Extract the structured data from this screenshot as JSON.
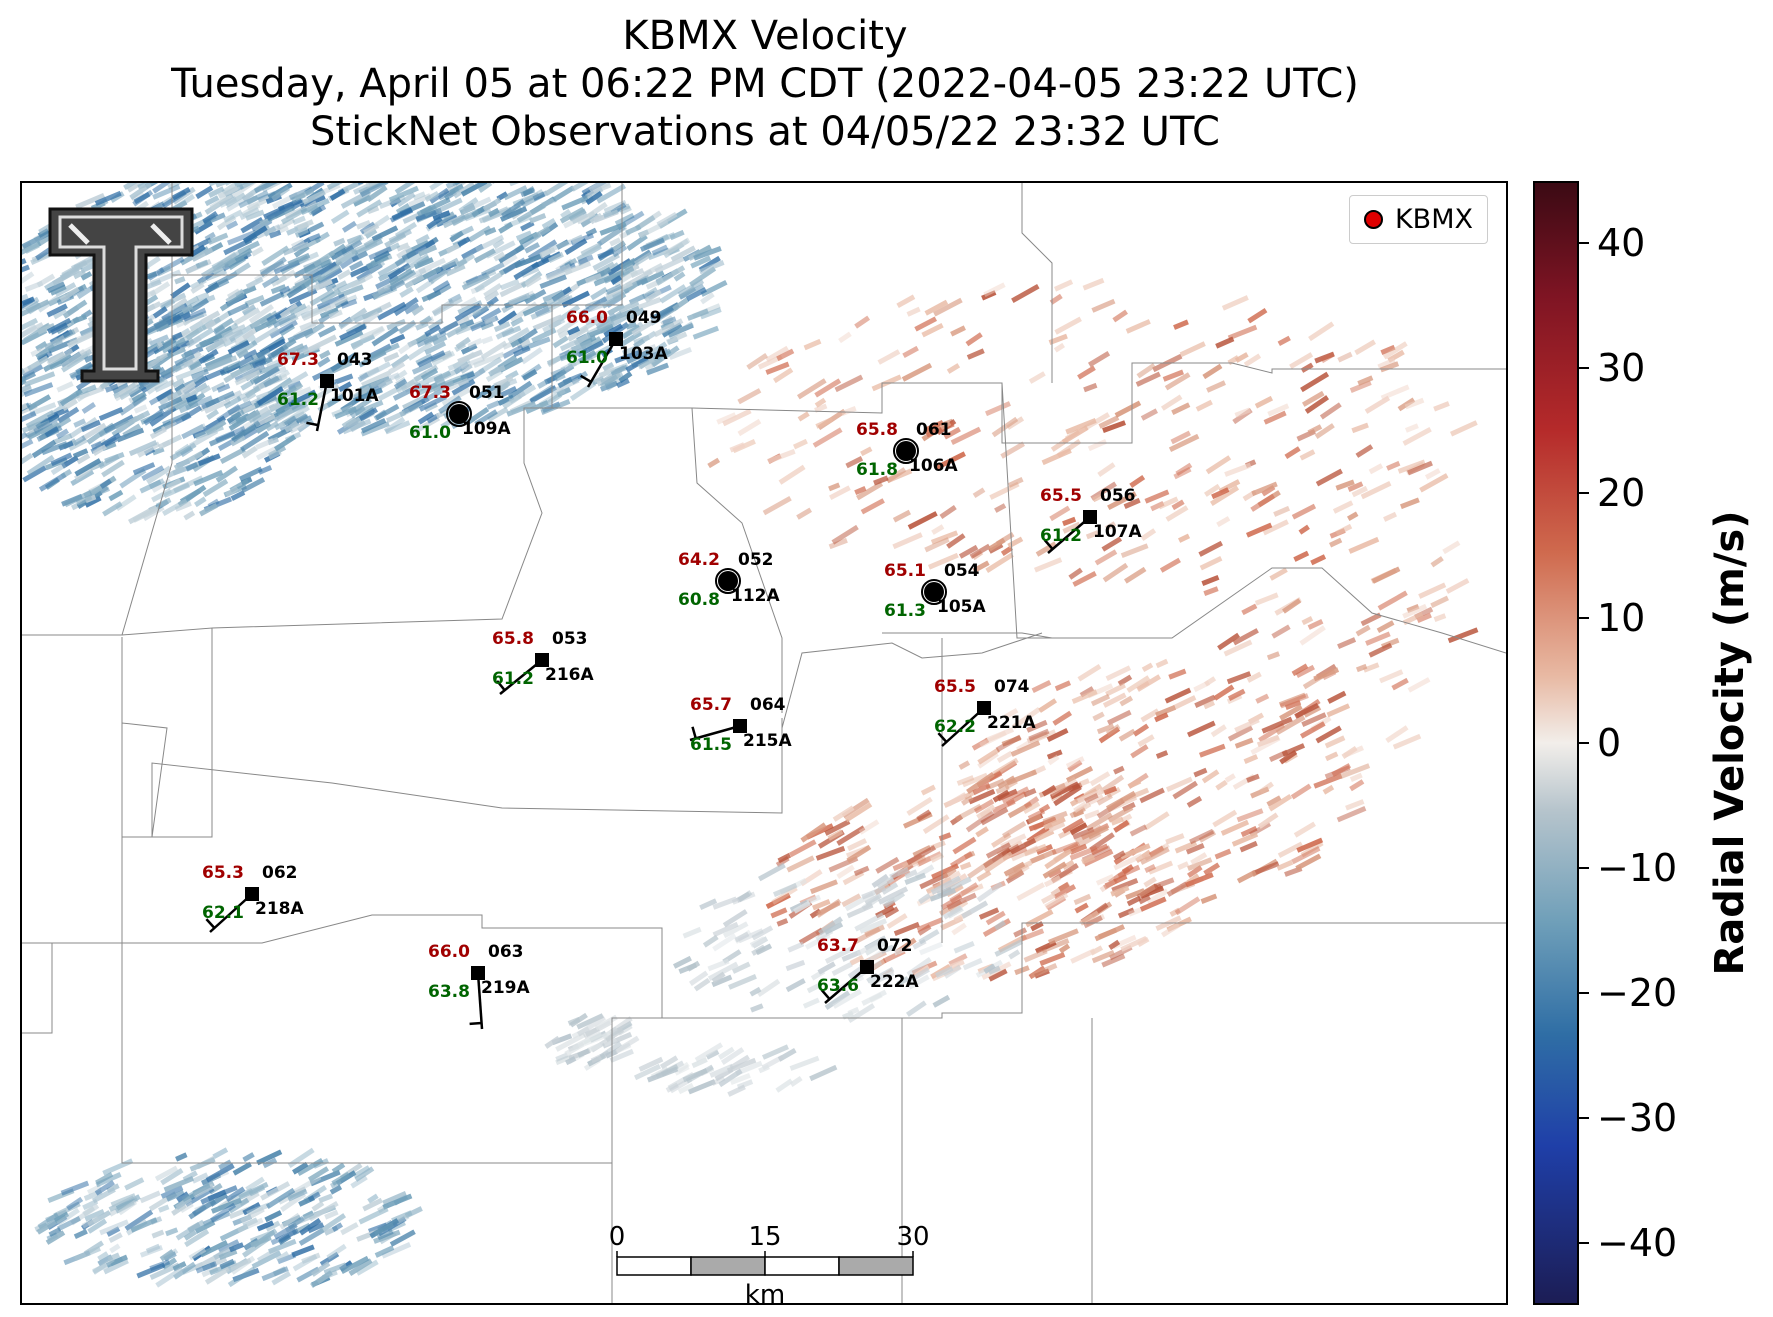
{
  "title": {
    "line1": "KBMX Velocity",
    "line2": "Tuesday, April 05 at 06:22 PM CDT (2022-04-05 23:22 UTC)",
    "line3": "StickNet Observations at 04/05/22 23:32 UTC"
  },
  "legend": {
    "label": "KBMX",
    "marker_color": "#e00000"
  },
  "colorbar": {
    "label": "Radial Velocity (m/s)",
    "ticks": [
      "40",
      "30",
      "20",
      "10",
      "0",
      "−10",
      "−20",
      "−30",
      "−40"
    ],
    "range": [
      -45,
      45
    ]
  },
  "scalebar": {
    "ticks": [
      "0",
      "15",
      "30"
    ],
    "unit": "km"
  },
  "logo": {
    "icon": "texas-tech-double-t-logo"
  },
  "colors": {
    "temperature": "#a00000",
    "dewpoint": "#006400",
    "station_id": "#000000"
  },
  "stations": [
    {
      "id": "043",
      "probe": "101A",
      "temp": "67.3",
      "dew": "61.2",
      "marker": "square-barb"
    },
    {
      "id": "051",
      "probe": "109A",
      "temp": "67.3",
      "dew": "61.0",
      "marker": "calm-circle"
    },
    {
      "id": "049",
      "probe": "103A",
      "temp": "66.0",
      "dew": "61.0",
      "marker": "square-barb"
    },
    {
      "id": "061",
      "probe": "106A",
      "temp": "65.8",
      "dew": "61.8",
      "marker": "calm-circle"
    },
    {
      "id": "056",
      "probe": "107A",
      "temp": "65.5",
      "dew": "61.2",
      "marker": "square-barb"
    },
    {
      "id": "052",
      "probe": "112A",
      "temp": "64.2",
      "dew": "60.8",
      "marker": "calm-circle"
    },
    {
      "id": "054",
      "probe": "105A",
      "temp": "65.1",
      "dew": "61.3",
      "marker": "calm-circle"
    },
    {
      "id": "053",
      "probe": "216A",
      "temp": "65.8",
      "dew": "61.2",
      "marker": "square-barb"
    },
    {
      "id": "064",
      "probe": "215A",
      "temp": "65.7",
      "dew": "61.5",
      "marker": "square-barb"
    },
    {
      "id": "074",
      "probe": "221A",
      "temp": "65.5",
      "dew": "62.2",
      "marker": "square-barb"
    },
    {
      "id": "062",
      "probe": "218A",
      "temp": "65.3",
      "dew": "62.1",
      "marker": "square-barb"
    },
    {
      "id": "063",
      "probe": "219A",
      "temp": "66.0",
      "dew": "63.8",
      "marker": "square-barb"
    },
    {
      "id": "072",
      "probe": "222A",
      "temp": "63.7",
      "dew": "63.6",
      "marker": "square-barb"
    }
  ]
}
